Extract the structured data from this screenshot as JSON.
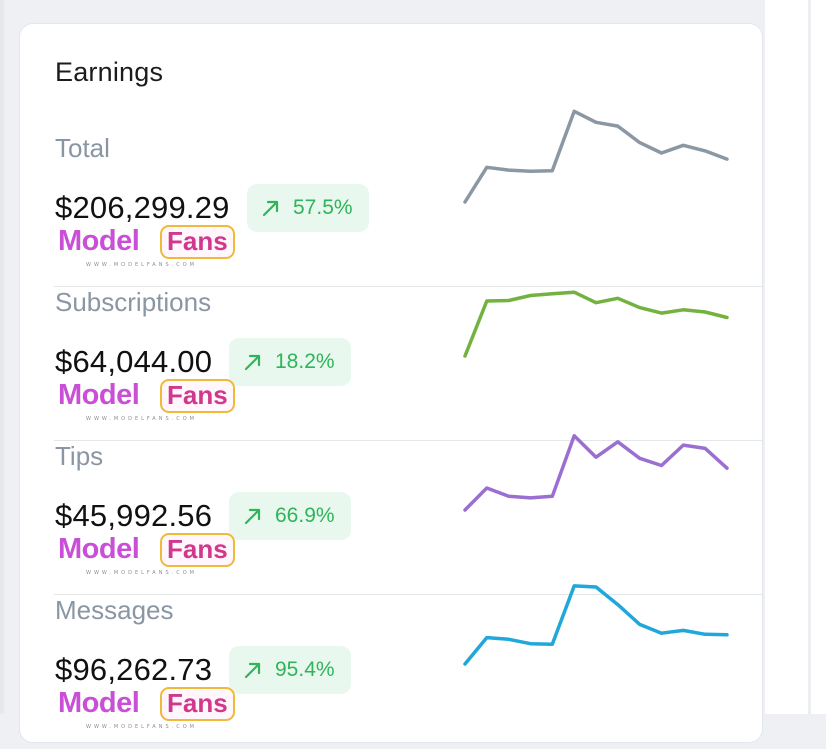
{
  "card": {
    "title": "Earnings"
  },
  "logo": {
    "model": "Model",
    "fans": "Fans",
    "url": "WWW.MODELFANS.COM"
  },
  "rows": [
    {
      "label": "Total",
      "amount": "$206,299.29",
      "change": "57.5%",
      "line_color": "#8c97a4",
      "trend": [
        20,
        83,
        78,
        76,
        77,
        185,
        165,
        158,
        128,
        109,
        123,
        113,
        98
      ]
    },
    {
      "label": "Subscriptions",
      "amount": "$64,044.00",
      "change": "18.2%",
      "line_color": "#73b23f",
      "trend": [
        20,
        120,
        121,
        130,
        133,
        136,
        117,
        125,
        108,
        98,
        104,
        100,
        90
      ]
    },
    {
      "label": "Tips",
      "amount": "$45,992.56",
      "change": "66.9%",
      "line_color": "#9a6fd1",
      "trend": [
        20,
        60,
        45,
        42,
        45,
        155,
        116,
        144,
        114,
        101,
        138,
        132,
        96
      ]
    },
    {
      "label": "Messages",
      "amount": "$96,262.73",
      "change": "95.4%",
      "line_color": "#20a7db",
      "trend": [
        20,
        68,
        65,
        57,
        56,
        162,
        160,
        128,
        92,
        76,
        81,
        74,
        73
      ]
    }
  ],
  "colors": {
    "badge_bg": "#e9f8ee",
    "badge_text": "#2fb45a",
    "label": "#8a96a3",
    "amount": "#111111"
  },
  "icons": {
    "trend": "arrow-up-right-icon"
  }
}
